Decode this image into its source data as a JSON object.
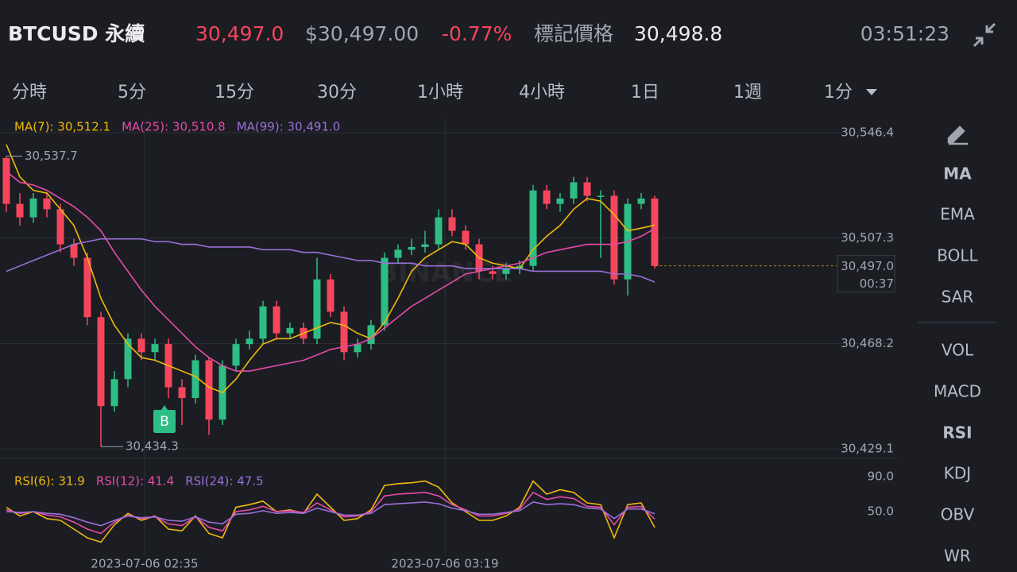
{
  "header": {
    "symbol": "BTCUSD 永續",
    "last_price": "30,497.0",
    "usd_price": "$30,497.00",
    "change": "-0.77%",
    "mark_label": "標記價格",
    "mark_price": "30,498.8",
    "clock": "03:51:23"
  },
  "intervals": [
    "分時",
    "5分",
    "15分",
    "30分",
    "1小時",
    "4小時",
    "1日",
    "1週",
    "1分"
  ],
  "indicators": [
    "MA",
    "EMA",
    "BOLL",
    "SAR",
    "VOL",
    "MACD",
    "RSI",
    "KDJ",
    "OBV",
    "WR"
  ],
  "chart_data": {
    "type": "candlestick",
    "watermark": "BINANCE",
    "open": [
      30537,
      30520,
      30515,
      30522,
      30518,
      30505,
      30500,
      30478,
      30445,
      30455,
      30470,
      30465,
      30468,
      30452,
      30448,
      30462,
      30440,
      30460,
      30468,
      30470,
      30482,
      30472,
      30474,
      30470,
      30492,
      30480,
      30465,
      30468,
      30475,
      30500,
      30503,
      30504,
      30505,
      30515,
      30510,
      30505,
      30495,
      30494,
      30496,
      30497,
      30525,
      30520,
      30522,
      30528,
      30523,
      30523,
      30492,
      30520,
      30522
    ],
    "close": [
      30520,
      30515,
      30522,
      30518,
      30505,
      30500,
      30478,
      30445,
      30455,
      30470,
      30465,
      30468,
      30452,
      30448,
      30462,
      30440,
      30460,
      30468,
      30470,
      30482,
      30472,
      30474,
      30470,
      30492,
      30480,
      30465,
      30468,
      30475,
      30500,
      30503,
      30504,
      30505,
      30515,
      30510,
      30505,
      30495,
      30494,
      30496,
      30497,
      30525,
      30520,
      30522,
      30528,
      30523,
      30523,
      30492,
      30520,
      30522,
      30497
    ],
    "high": [
      30537.7,
      30524,
      30524,
      30524,
      30520,
      30507,
      30502,
      30480,
      30458,
      30472,
      30472,
      30470,
      30470,
      30455,
      30464,
      30463,
      30462,
      30470,
      30473,
      30484,
      30484,
      30476,
      30476,
      30500,
      30494,
      30482,
      30470,
      30477,
      30502,
      30505,
      30507,
      30510,
      30518,
      30518,
      30512,
      30507,
      30497,
      30498,
      30499,
      30527,
      30527,
      30524,
      30530,
      30530,
      30525,
      30525,
      30522,
      30524,
      30523
    ],
    "low": [
      30517,
      30512,
      30513,
      30515,
      30502,
      30497,
      30475,
      30430,
      30443,
      30452,
      30462,
      30462,
      30448,
      30438,
      30446,
      30434.3,
      30438,
      30458,
      30466,
      30468,
      30470,
      30470,
      30468,
      30468,
      30478,
      30462,
      30463,
      30466,
      30473,
      30498,
      30501,
      30502,
      30503,
      30508,
      30503,
      30492,
      30492,
      30492,
      30494,
      30495,
      30518,
      30517,
      30520,
      30521,
      30500,
      30490,
      30486,
      30518,
      30496
    ],
    "high_label": "30,537.7",
    "low_label": "30,434.3",
    "ma": [
      {
        "name": "MA(7): 30,512.1",
        "color": "#f0b90b",
        "values": [
          30542,
          30530,
          30525,
          30524,
          30518,
          30512,
          30500,
          30485,
          30475,
          30468,
          30463,
          30462,
          30460,
          30458,
          30456,
          30452,
          30450,
          30455,
          30462,
          30468,
          30470,
          30470,
          30472,
          30474,
          30476,
          30475,
          30472,
          30470,
          30476,
          30485,
          30495,
          30500,
          30503,
          30506,
          30505,
          30500,
          30498,
          30497,
          30496,
          30503,
          30508,
          30512,
          30518,
          30522,
          30521,
          30516,
          30510,
          30511,
          30512.1
        ]
      },
      {
        "name": "MA(25): 30,510.8",
        "color": "#e84ba8",
        "values": [
          30532,
          30528,
          30527,
          30525,
          30522,
          30519,
          30515,
          30510,
          30502,
          30495,
          30488,
          30482,
          30477,
          30472,
          30467,
          30463,
          30460,
          30458,
          30458,
          30459,
          30460,
          30461,
          30462,
          30464,
          30466,
          30467,
          30468,
          30470,
          30474,
          30478,
          30482,
          30485,
          30488,
          30491,
          30494,
          30495,
          30496,
          30497,
          30498,
          30500,
          30502,
          30503,
          30504,
          30505,
          30505,
          30505,
          30506,
          30508,
          30510.8
        ]
      },
      {
        "name": "MA(99): 30,491.0",
        "color": "#9b6fd8",
        "values": [
          30495,
          30497,
          30499,
          30501,
          30503,
          30505,
          30506,
          30507,
          30507,
          30507,
          30507,
          30506,
          30506,
          30505,
          30505,
          30504,
          30504,
          30504,
          30504,
          30503,
          30503,
          30503,
          30502,
          30502,
          30501,
          30500,
          30499,
          30499,
          30498,
          30498,
          30498,
          30497,
          30497,
          30497,
          30496,
          30496,
          30496,
          30496,
          30496,
          30495,
          30495,
          30495,
          30495,
          30495,
          30495,
          30494,
          30494,
          30493,
          30491.0
        ]
      }
    ],
    "ylim": [
      30426.2,
      30552.0
    ],
    "yticks": [
      {
        "value": 30546.4,
        "label": "30,546.4"
      },
      {
        "value": 30507.3,
        "label": "30,507.3"
      },
      {
        "value": 30468.2,
        "label": "30,468.2"
      },
      {
        "value": 30429.1,
        "label": "30,429.1"
      }
    ],
    "current": {
      "value": 30497.0,
      "label": "30,497.0",
      "countdown": "00:37"
    },
    "trade_marker": "B",
    "time_labels": [
      "2023-07-06 02:35",
      "2023-07-06 03:19"
    ],
    "rsi": {
      "ylim": [
        0,
        110
      ],
      "yticks": [
        {
          "value": 90,
          "label": "90.0"
        },
        {
          "value": 50,
          "label": "50.0"
        }
      ],
      "series": [
        {
          "name": "RSI(6): 31.9",
          "color": "#f0b90b",
          "values": [
            55,
            45,
            50,
            42,
            40,
            30,
            20,
            15,
            35,
            48,
            40,
            45,
            30,
            28,
            45,
            25,
            20,
            55,
            58,
            62,
            50,
            52,
            48,
            70,
            55,
            40,
            42,
            52,
            80,
            82,
            83,
            85,
            78,
            60,
            50,
            40,
            40,
            45,
            55,
            85,
            70,
            75,
            72,
            60,
            58,
            20,
            58,
            60,
            31.9
          ]
        },
        {
          "name": "RSI(12): 41.4",
          "color": "#e84ba8",
          "values": [
            52,
            48,
            50,
            46,
            44,
            38,
            30,
            25,
            38,
            46,
            42,
            44,
            36,
            34,
            44,
            32,
            28,
            50,
            52,
            56,
            50,
            51,
            49,
            60,
            52,
            44,
            45,
            50,
            68,
            70,
            71,
            72,
            68,
            58,
            52,
            45,
            45,
            48,
            53,
            72,
            64,
            67,
            65,
            56,
            55,
            35,
            55,
            56,
            41.4
          ]
        },
        {
          "name": "RSI(24): 47.5",
          "color": "#9b6fd8",
          "values": [
            50,
            49,
            50,
            48,
            47,
            43,
            38,
            34,
            40,
            45,
            43,
            44,
            40,
            39,
            44,
            38,
            36,
            47,
            48,
            51,
            48,
            49,
            48,
            54,
            50,
            46,
            46,
            48,
            58,
            59,
            60,
            61,
            59,
            54,
            51,
            47,
            47,
            49,
            51,
            61,
            58,
            59,
            58,
            54,
            53,
            42,
            53,
            53,
            47.5
          ]
        }
      ]
    }
  }
}
